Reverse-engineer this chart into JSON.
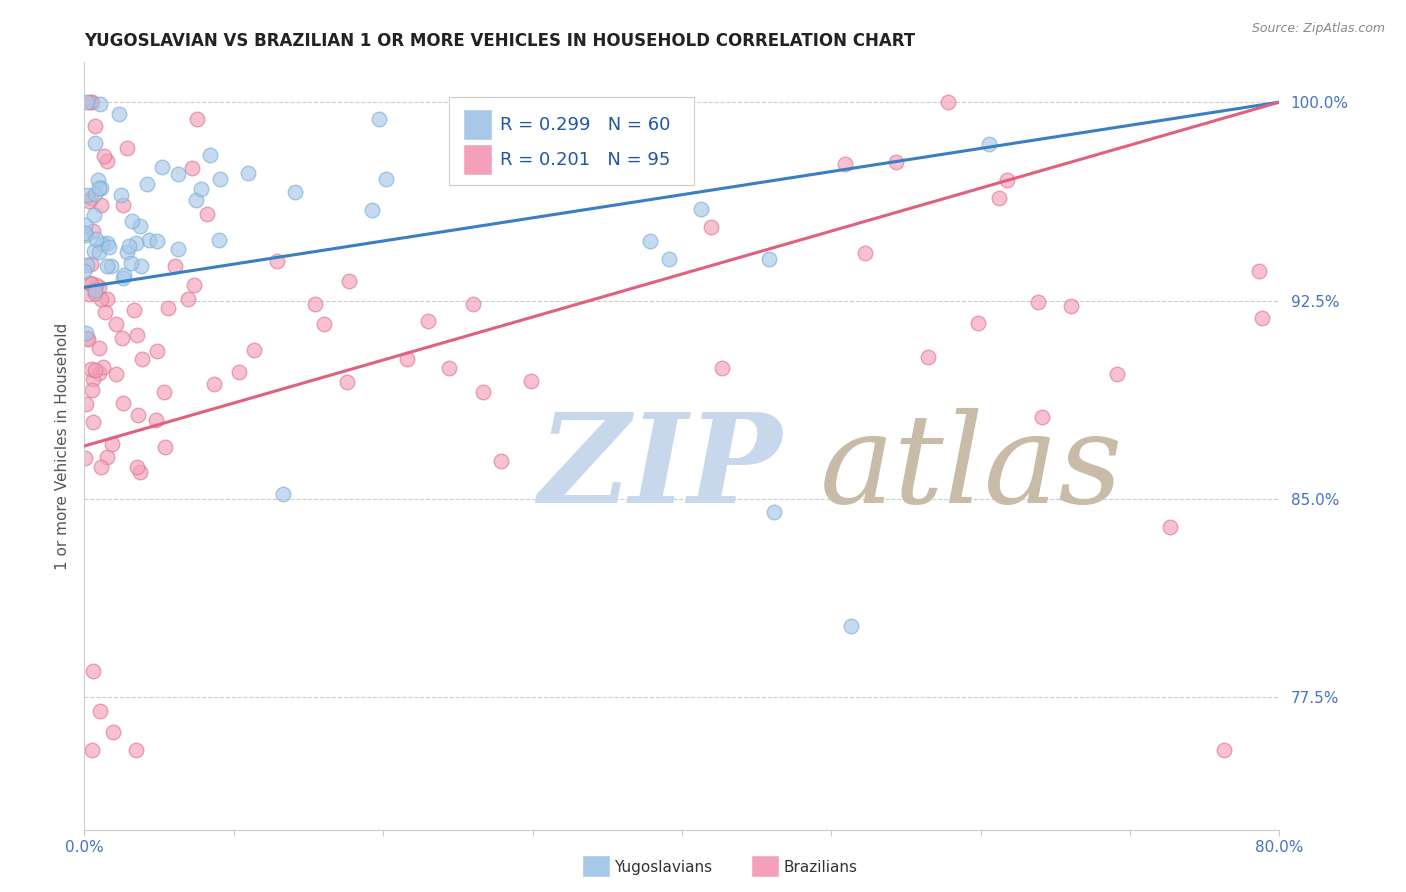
{
  "title": "YUGOSLAVIAN VS BRAZILIAN 1 OR MORE VEHICLES IN HOUSEHOLD CORRELATION CHART",
  "source": "Source: ZipAtlas.com",
  "ylabel": "1 or more Vehicles in Household",
  "xlabel_yugoslav": "Yugoslavians",
  "xlabel_brazil": "Brazilians",
  "xmin": 0.0,
  "xmax": 0.8,
  "ymin": 0.725,
  "ymax": 1.015,
  "yticks": [
    0.775,
    0.85,
    0.925,
    1.0
  ],
  "ytick_labels": [
    "77.5%",
    "85.0%",
    "92.5%",
    "100.0%"
  ],
  "R_yugoslav": 0.299,
  "N_yugoslav": 60,
  "R_brazil": 0.201,
  "N_brazil": 95,
  "blue_color": "#a8c8e8",
  "pink_color": "#f4a0b8",
  "trend_blue": "#3a7fc1",
  "trend_pink": "#e06080",
  "watermark_zip_color": "#c8d8ec",
  "watermark_atlas_color": "#c8bca8",
  "blue_ystart": 0.93,
  "blue_yend": 1.0,
  "pink_ystart": 0.87,
  "pink_yend": 1.0,
  "blue_xstart": 0.0,
  "blue_xend": 0.8,
  "pink_xstart": 0.0,
  "pink_xend": 0.8
}
